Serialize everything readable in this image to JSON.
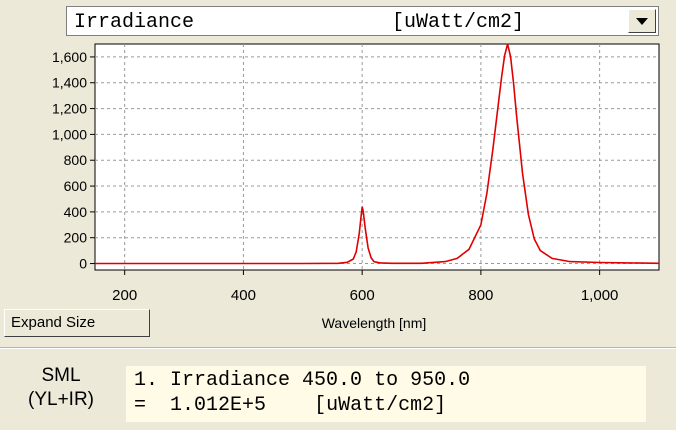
{
  "selector": {
    "label": "Irradiance",
    "unit": "[uWatt/cm2]"
  },
  "expand_button_label": "Expand Size",
  "sml": {
    "title_line1": "SML",
    "title_line2": "(YL+IR)",
    "line1_index": "1.",
    "line1_text": "Irradiance 450.0 to 950.0",
    "line2_eq": "=",
    "line2_value": "1.012E+5",
    "line2_unit": "[uWatt/cm2]"
  },
  "colors": {
    "series": "#e00000",
    "grid": "#9a9a9a",
    "background": "#ece9d8"
  },
  "chart_data": {
    "type": "line",
    "xlabel": "Wavelength [nm]",
    "ylabel": "",
    "xlim": [
      150,
      1100
    ],
    "ylim": [
      -50,
      1700
    ],
    "x_ticks": [
      200,
      400,
      600,
      800,
      1000
    ],
    "x_tick_labels": [
      "200",
      "400",
      "600",
      "800",
      "1,000"
    ],
    "y_ticks": [
      0,
      200,
      400,
      600,
      800,
      1000,
      1200,
      1400,
      1600
    ],
    "y_tick_labels": [
      "0",
      "200",
      "400",
      "600",
      "800",
      "1,000",
      "1,200",
      "1,400",
      "1,600"
    ],
    "grid": true,
    "series": [
      {
        "x": [
          150,
          200,
          300,
          400,
          500,
          560,
          575,
          585,
          590,
          595,
          598,
          600,
          602,
          605,
          610,
          615,
          620,
          630,
          650,
          700,
          740,
          760,
          780,
          800,
          810,
          820,
          830,
          835,
          840,
          845,
          850,
          855,
          860,
          870,
          880,
          890,
          900,
          920,
          950,
          1000,
          1050,
          1100
        ],
        "y": [
          0,
          0,
          0,
          0,
          0,
          2,
          10,
          35,
          90,
          230,
          360,
          440,
          400,
          280,
          120,
          45,
          15,
          5,
          2,
          2,
          15,
          40,
          110,
          300,
          540,
          880,
          1260,
          1450,
          1610,
          1700,
          1600,
          1400,
          1150,
          700,
          380,
          190,
          100,
          40,
          15,
          8,
          5,
          2
        ]
      }
    ]
  }
}
